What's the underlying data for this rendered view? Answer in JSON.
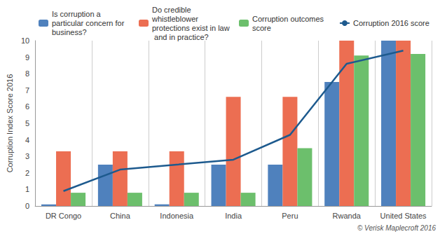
{
  "chart_data": {
    "type": "bar",
    "y_label": "Corruption Index Score 2016",
    "annotation": "© Verisk Maplecroft 2016",
    "categories": [
      "DR Congo",
      "China",
      "Indonesia",
      "India",
      "Peru",
      "Rwanda",
      "United States"
    ],
    "series": [
      {
        "name": "Is corruption a particular concern for business?",
        "type": "bar",
        "color": "#4f81bd",
        "values": [
          0.1,
          2.5,
          0.1,
          2.5,
          2.5,
          7.5,
          10
        ]
      },
      {
        "name": "Do credible whistleblower protections exist in law and in practice?",
        "type": "bar",
        "color": "#ec6e52",
        "values": [
          3.3,
          3.3,
          3.3,
          6.6,
          6.6,
          10,
          10
        ]
      },
      {
        "name": "Corruption outcomes score",
        "type": "bar",
        "color": "#6cbf6c",
        "values": [
          0.8,
          0.8,
          0.8,
          0.8,
          3.5,
          9.1,
          9.2
        ]
      },
      {
        "name": "Corruption 2016 score",
        "type": "line",
        "color": "#1d5a8e",
        "values": [
          0.9,
          2.2,
          2.5,
          2.8,
          4.3,
          8.6,
          9.4
        ]
      }
    ],
    "ylim": [
      0,
      10
    ],
    "yticks": [
      0,
      1,
      2,
      3,
      4,
      5,
      6,
      7,
      8,
      9,
      10
    ],
    "grid": true,
    "legend": "top"
  }
}
